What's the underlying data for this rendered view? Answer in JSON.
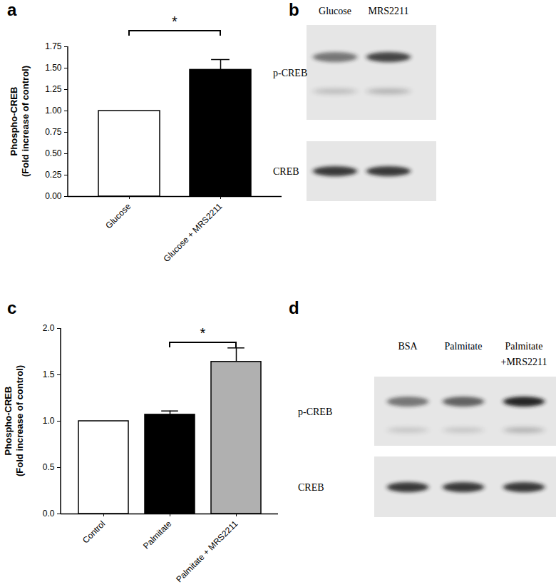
{
  "chart_data": [
    {
      "panel": "a",
      "type": "bar",
      "categories": [
        "Glucose",
        "Glucose + MRS2211"
      ],
      "values": [
        1.0,
        1.48
      ],
      "errors": [
        null,
        0.12
      ],
      "colors": [
        "#ffffff",
        "#000000"
      ],
      "ylabel": "Phospho-CREB\n(Fold increase of control)",
      "ylim": [
        0,
        1.75
      ],
      "yticks": [
        {
          "value": 0,
          "label": "0.00"
        },
        {
          "value": 0.25,
          "label": "0.25"
        },
        {
          "value": 0.5,
          "label": "0.50"
        },
        {
          "value": 0.75,
          "label": "0.75"
        },
        {
          "value": 1,
          "label": "1.00"
        },
        {
          "value": 1.25,
          "label": "1.25"
        },
        {
          "value": 1.5,
          "label": "1.50"
        },
        {
          "value": 1.75,
          "label": "1.75"
        }
      ],
      "annotations": [
        {
          "text": "*",
          "from": "Glucose",
          "to": "Glucose + MRS2211"
        }
      ]
    },
    {
      "panel": "c",
      "type": "bar",
      "categories": [
        "Control",
        "Palmitate",
        "Palmitate + MRS2211"
      ],
      "values": [
        1.0,
        1.07,
        1.64
      ],
      "errors": [
        null,
        0.04,
        0.15
      ],
      "colors": [
        "#ffffff",
        "#000000",
        "#b0b0b0"
      ],
      "ylabel": "Phospho-CREB\n(Fold increase of control)",
      "ylim": [
        0,
        2
      ],
      "yticks": [
        {
          "value": 0,
          "label": "0.0"
        },
        {
          "value": 0.5,
          "label": "0.5"
        },
        {
          "value": 1,
          "label": "1.0"
        },
        {
          "value": 1.5,
          "label": "1.5"
        },
        {
          "value": 2,
          "label": "2.0"
        }
      ],
      "annotations": [
        {
          "text": "*",
          "from": "Palmitate",
          "to": "Palmitate + MRS2211"
        }
      ]
    }
  ],
  "blots": [
    {
      "panel": "b",
      "lanes": [
        "Glucose",
        "MRS2211"
      ],
      "rows": [
        "p-CREB",
        "CREB"
      ]
    },
    {
      "panel": "d",
      "lanes": [
        "BSA",
        "Palmitate",
        "Palmitate\n+MRS2211"
      ],
      "rows": [
        "p-CREB",
        "CREB"
      ]
    }
  ]
}
